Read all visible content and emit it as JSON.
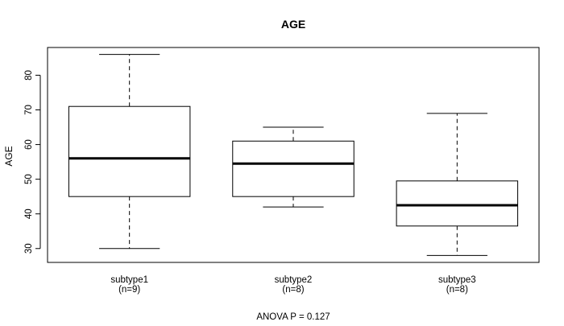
{
  "chart_data": {
    "type": "boxplot",
    "title": "AGE",
    "ylabel": "AGE",
    "xlabel": "",
    "footnote": "ANOVA P = 0.127",
    "ylim": [
      26,
      88
    ],
    "yticks": [
      30,
      40,
      50,
      60,
      70,
      80
    ],
    "grid": false,
    "legend": "none",
    "colors": {
      "box_fill": "#ffffff",
      "stroke": "#000000"
    },
    "groups": [
      {
        "name": "subtype1",
        "n_label": "(n=9)",
        "min": 30,
        "q1": 45,
        "median": 56,
        "q3": 71,
        "max": 86
      },
      {
        "name": "subtype2",
        "n_label": "(n=8)",
        "min": 42,
        "q1": 45,
        "median": 54.5,
        "q3": 61,
        "max": 65
      },
      {
        "name": "subtype3",
        "n_label": "(n=8)",
        "min": 28,
        "q1": 36.5,
        "median": 42.5,
        "q3": 49.5,
        "max": 69
      }
    ]
  }
}
